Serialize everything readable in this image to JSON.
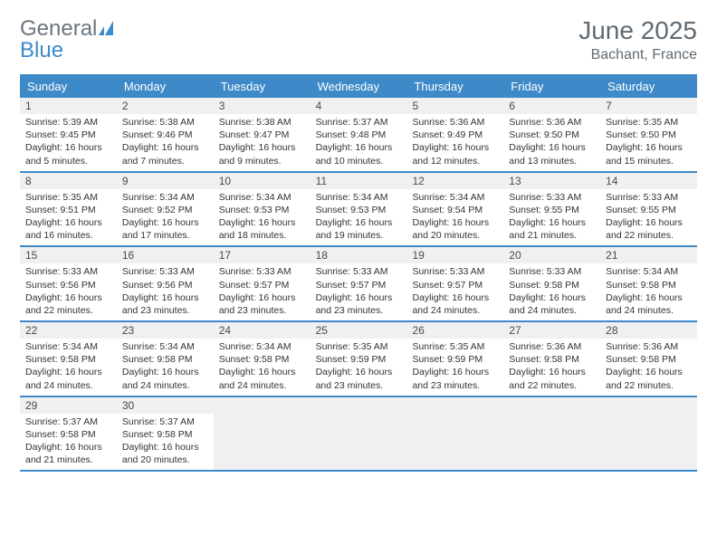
{
  "logo": {
    "general": "General",
    "blue": "Blue"
  },
  "title": "June 2025",
  "location": "Bachant, France",
  "colors": {
    "header_bg": "#3e8ac8",
    "header_text": "#ffffff",
    "daynum_bg": "#eef0f1",
    "text": "#333333",
    "muted": "#5f6a72"
  },
  "day_names": [
    "Sunday",
    "Monday",
    "Tuesday",
    "Wednesday",
    "Thursday",
    "Friday",
    "Saturday"
  ],
  "weeks": [
    [
      {
        "n": "1",
        "sr": "Sunrise: 5:39 AM",
        "ss": "Sunset: 9:45 PM",
        "dl": "Daylight: 16 hours and 5 minutes."
      },
      {
        "n": "2",
        "sr": "Sunrise: 5:38 AM",
        "ss": "Sunset: 9:46 PM",
        "dl": "Daylight: 16 hours and 7 minutes."
      },
      {
        "n": "3",
        "sr": "Sunrise: 5:38 AM",
        "ss": "Sunset: 9:47 PM",
        "dl": "Daylight: 16 hours and 9 minutes."
      },
      {
        "n": "4",
        "sr": "Sunrise: 5:37 AM",
        "ss": "Sunset: 9:48 PM",
        "dl": "Daylight: 16 hours and 10 minutes."
      },
      {
        "n": "5",
        "sr": "Sunrise: 5:36 AM",
        "ss": "Sunset: 9:49 PM",
        "dl": "Daylight: 16 hours and 12 minutes."
      },
      {
        "n": "6",
        "sr": "Sunrise: 5:36 AM",
        "ss": "Sunset: 9:50 PM",
        "dl": "Daylight: 16 hours and 13 minutes."
      },
      {
        "n": "7",
        "sr": "Sunrise: 5:35 AM",
        "ss": "Sunset: 9:50 PM",
        "dl": "Daylight: 16 hours and 15 minutes."
      }
    ],
    [
      {
        "n": "8",
        "sr": "Sunrise: 5:35 AM",
        "ss": "Sunset: 9:51 PM",
        "dl": "Daylight: 16 hours and 16 minutes."
      },
      {
        "n": "9",
        "sr": "Sunrise: 5:34 AM",
        "ss": "Sunset: 9:52 PM",
        "dl": "Daylight: 16 hours and 17 minutes."
      },
      {
        "n": "10",
        "sr": "Sunrise: 5:34 AM",
        "ss": "Sunset: 9:53 PM",
        "dl": "Daylight: 16 hours and 18 minutes."
      },
      {
        "n": "11",
        "sr": "Sunrise: 5:34 AM",
        "ss": "Sunset: 9:53 PM",
        "dl": "Daylight: 16 hours and 19 minutes."
      },
      {
        "n": "12",
        "sr": "Sunrise: 5:34 AM",
        "ss": "Sunset: 9:54 PM",
        "dl": "Daylight: 16 hours and 20 minutes."
      },
      {
        "n": "13",
        "sr": "Sunrise: 5:33 AM",
        "ss": "Sunset: 9:55 PM",
        "dl": "Daylight: 16 hours and 21 minutes."
      },
      {
        "n": "14",
        "sr": "Sunrise: 5:33 AM",
        "ss": "Sunset: 9:55 PM",
        "dl": "Daylight: 16 hours and 22 minutes."
      }
    ],
    [
      {
        "n": "15",
        "sr": "Sunrise: 5:33 AM",
        "ss": "Sunset: 9:56 PM",
        "dl": "Daylight: 16 hours and 22 minutes."
      },
      {
        "n": "16",
        "sr": "Sunrise: 5:33 AM",
        "ss": "Sunset: 9:56 PM",
        "dl": "Daylight: 16 hours and 23 minutes."
      },
      {
        "n": "17",
        "sr": "Sunrise: 5:33 AM",
        "ss": "Sunset: 9:57 PM",
        "dl": "Daylight: 16 hours and 23 minutes."
      },
      {
        "n": "18",
        "sr": "Sunrise: 5:33 AM",
        "ss": "Sunset: 9:57 PM",
        "dl": "Daylight: 16 hours and 23 minutes."
      },
      {
        "n": "19",
        "sr": "Sunrise: 5:33 AM",
        "ss": "Sunset: 9:57 PM",
        "dl": "Daylight: 16 hours and 24 minutes."
      },
      {
        "n": "20",
        "sr": "Sunrise: 5:33 AM",
        "ss": "Sunset: 9:58 PM",
        "dl": "Daylight: 16 hours and 24 minutes."
      },
      {
        "n": "21",
        "sr": "Sunrise: 5:34 AM",
        "ss": "Sunset: 9:58 PM",
        "dl": "Daylight: 16 hours and 24 minutes."
      }
    ],
    [
      {
        "n": "22",
        "sr": "Sunrise: 5:34 AM",
        "ss": "Sunset: 9:58 PM",
        "dl": "Daylight: 16 hours and 24 minutes."
      },
      {
        "n": "23",
        "sr": "Sunrise: 5:34 AM",
        "ss": "Sunset: 9:58 PM",
        "dl": "Daylight: 16 hours and 24 minutes."
      },
      {
        "n": "24",
        "sr": "Sunrise: 5:34 AM",
        "ss": "Sunset: 9:58 PM",
        "dl": "Daylight: 16 hours and 24 minutes."
      },
      {
        "n": "25",
        "sr": "Sunrise: 5:35 AM",
        "ss": "Sunset: 9:59 PM",
        "dl": "Daylight: 16 hours and 23 minutes."
      },
      {
        "n": "26",
        "sr": "Sunrise: 5:35 AM",
        "ss": "Sunset: 9:59 PM",
        "dl": "Daylight: 16 hours and 23 minutes."
      },
      {
        "n": "27",
        "sr": "Sunrise: 5:36 AM",
        "ss": "Sunset: 9:58 PM",
        "dl": "Daylight: 16 hours and 22 minutes."
      },
      {
        "n": "28",
        "sr": "Sunrise: 5:36 AM",
        "ss": "Sunset: 9:58 PM",
        "dl": "Daylight: 16 hours and 22 minutes."
      }
    ],
    [
      {
        "n": "29",
        "sr": "Sunrise: 5:37 AM",
        "ss": "Sunset: 9:58 PM",
        "dl": "Daylight: 16 hours and 21 minutes."
      },
      {
        "n": "30",
        "sr": "Sunrise: 5:37 AM",
        "ss": "Sunset: 9:58 PM",
        "dl": "Daylight: 16 hours and 20 minutes."
      },
      null,
      null,
      null,
      null,
      null
    ]
  ]
}
